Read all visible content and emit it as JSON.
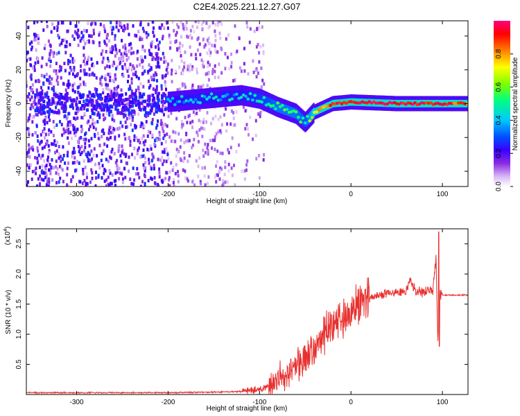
{
  "title": "C2E4.2025.221.12.27.G07",
  "chart_data": [
    {
      "type": "heatmap",
      "xlabel": "Height of straight line (km)",
      "ylabel": "Frequency (Hz)",
      "xlim": [
        -355,
        128
      ],
      "ylim": [
        -49,
        49
      ],
      "x_ticks": [
        -300,
        -200,
        -100,
        0,
        100
      ],
      "y_ticks": [
        -40,
        -20,
        0,
        20,
        40
      ],
      "colorbar": {
        "label": "Normalized spectral amplitude",
        "range": [
          0,
          1
        ],
        "ticks": [
          "0.0",
          "0.2",
          "0.4",
          "0.6",
          "0.8"
        ],
        "colors": [
          "#ffffff",
          "#d9b8f5",
          "#8a2be2",
          "#3a00ff",
          "#0050ff",
          "#00c8ff",
          "#00ff80",
          "#80ff00",
          "#ffff00",
          "#ff8000",
          "#ff0000",
          "#ff0080"
        ]
      },
      "ridge": [
        {
          "x": -200,
          "freq": 1,
          "amp": 0.35
        },
        {
          "x": -180,
          "freq": 2,
          "amp": 0.4
        },
        {
          "x": -160,
          "freq": 3,
          "amp": 0.4
        },
        {
          "x": -140,
          "freq": 4,
          "amp": 0.4
        },
        {
          "x": -120,
          "freq": 5,
          "amp": 0.4
        },
        {
          "x": -100,
          "freq": 3,
          "amp": 0.45
        },
        {
          "x": -80,
          "freq": -2,
          "amp": 0.55
        },
        {
          "x": -60,
          "freq": -6,
          "amp": 0.55
        },
        {
          "x": -50,
          "freq": -11,
          "amp": 0.5
        },
        {
          "x": -40,
          "freq": -5,
          "amp": 0.7
        },
        {
          "x": -20,
          "freq": 0,
          "amp": 0.9
        },
        {
          "x": 0,
          "freq": 1,
          "amp": 0.95
        },
        {
          "x": 50,
          "freq": 0,
          "amp": 0.95
        },
        {
          "x": 100,
          "freq": 0,
          "amp": 0.9
        },
        {
          "x": 128,
          "freq": 0,
          "amp": 0.85
        }
      ]
    },
    {
      "type": "line",
      "xlabel": "Height of straight line (km)",
      "ylabel": "SNR (10 * v/v)",
      "scale_label": "(x10",
      "scale_exp": "4",
      "xlim": [
        -355,
        128
      ],
      "ylim": [
        0,
        2.75
      ],
      "x_ticks": [
        -300,
        -200,
        -100,
        0,
        100
      ],
      "y_ticks": [
        "0.5",
        "1.0",
        "1.5",
        "2.0",
        "2.5"
      ],
      "color": "#e8302f",
      "series": [
        {
          "x": [
            -355,
            -300,
            -250,
            -200,
            -150,
            -120,
            -100,
            -90,
            -80,
            -70,
            -60,
            -50,
            -40,
            -30,
            -20,
            -10,
            0,
            10,
            20,
            30,
            40,
            50,
            60,
            65,
            70,
            80,
            90,
            93,
            95,
            97,
            100,
            110,
            128
          ],
          "values": [
            0.03,
            0.03,
            0.03,
            0.03,
            0.04,
            0.05,
            0.08,
            0.15,
            0.25,
            0.35,
            0.45,
            0.6,
            0.75,
            1.0,
            1.15,
            1.25,
            1.35,
            1.5,
            1.6,
            1.65,
            1.68,
            1.7,
            1.72,
            1.9,
            1.72,
            1.7,
            1.75,
            2.3,
            0.85,
            1.7,
            1.65,
            1.65,
            1.65
          ]
        }
      ]
    }
  ]
}
